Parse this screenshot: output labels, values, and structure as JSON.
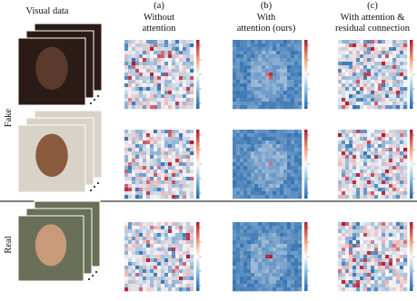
{
  "header": {
    "visual_data": "Visual data",
    "columns": [
      {
        "label": "(a)",
        "title": [
          "Without",
          "attention"
        ]
      },
      {
        "label": "(b)",
        "title": [
          "With",
          "attention (ours)"
        ]
      },
      {
        "label": "(c)",
        "title": [
          "With attention &",
          "residual connection"
        ]
      }
    ]
  },
  "rows": [
    {
      "label": "Fake"
    },
    {
      "label": "Real"
    }
  ]
}
